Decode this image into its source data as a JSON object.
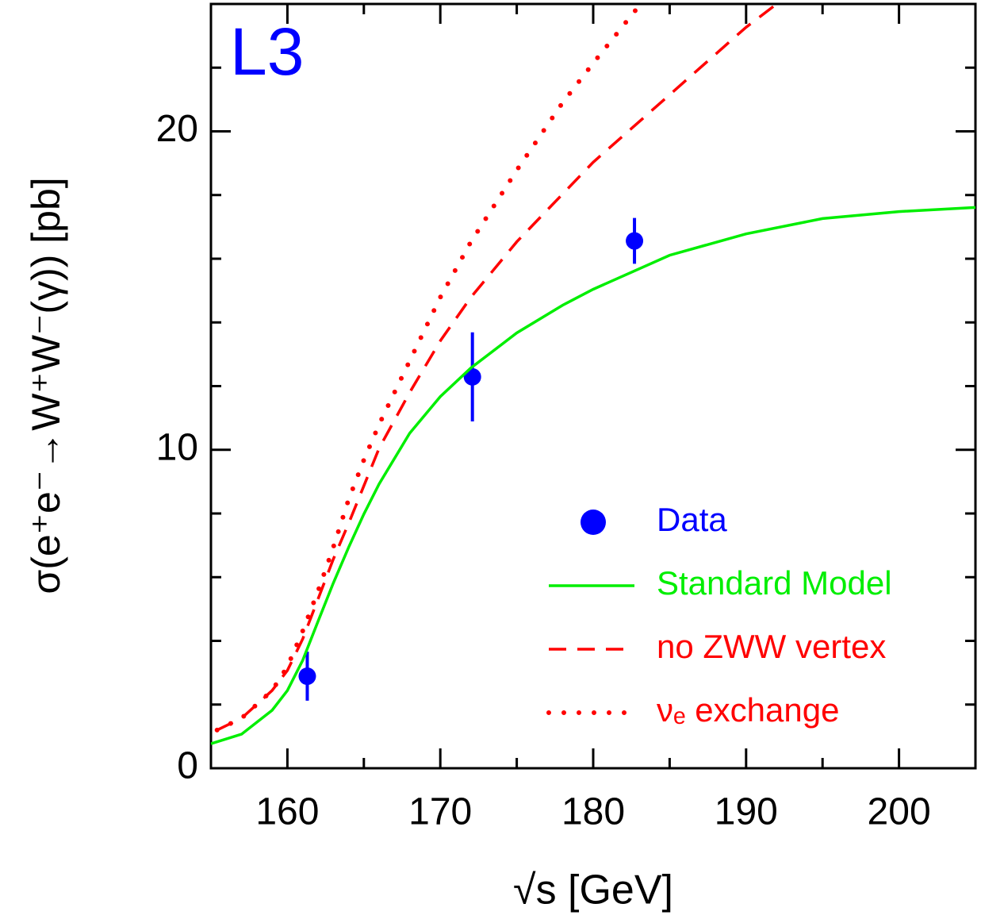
{
  "chart_data": {
    "type": "line",
    "title": "L3",
    "x_label": "√s   [GeV]",
    "y_label": "σ(e⁺e⁻→W⁺W⁻(γ))   [pb]",
    "xlim": [
      155,
      205
    ],
    "ylim": [
      0,
      24
    ],
    "xticks": [
      160,
      170,
      180,
      190,
      200
    ],
    "yticks": [
      0,
      10,
      20
    ],
    "xminorticks": [
      165,
      175,
      185,
      195
    ],
    "yminorticks": [
      2,
      4,
      6,
      8,
      12,
      14,
      16,
      18,
      22
    ],
    "legend": "lower right",
    "series": [
      {
        "name": "Data",
        "color": "#0000ff",
        "style": "points",
        "x": [
          161.3,
          172.1,
          182.7
        ],
        "values": [
          2.89,
          12.29,
          16.56
        ],
        "errors": [
          0.77,
          1.4,
          0.72
        ]
      },
      {
        "name": "Standard Model",
        "color": "#00ee00",
        "style": "solid",
        "x": [
          155,
          157,
          159,
          160,
          161,
          162,
          163,
          164,
          165,
          166,
          168,
          170,
          172,
          175,
          178,
          180,
          185,
          190,
          195,
          200,
          205
        ],
        "values": [
          0.77,
          1.07,
          1.82,
          2.44,
          3.39,
          4.61,
          5.81,
          6.93,
          7.98,
          8.93,
          10.52,
          11.67,
          12.57,
          13.67,
          14.54,
          15.04,
          16.11,
          16.78,
          17.26,
          17.48,
          17.61
        ]
      },
      {
        "name": "no ZWW vertex",
        "color": "#ff0000",
        "style": "dashed",
        "x": [
          155.4,
          157,
          159,
          160,
          161,
          162,
          163,
          164,
          166,
          168,
          170,
          172,
          175,
          178,
          180,
          185,
          190,
          192
        ],
        "values": [
          1.2,
          1.57,
          2.44,
          3.07,
          4.06,
          5.31,
          6.56,
          7.68,
          10.05,
          11.8,
          13.42,
          14.79,
          16.53,
          18.03,
          19.03,
          21.15,
          23.27,
          24.0
        ]
      },
      {
        "name": "νₑ exchange",
        "color": "#ff0000",
        "style": "dotted",
        "x": [
          155.4,
          157,
          159,
          160,
          161,
          162,
          163,
          164,
          165,
          166,
          168,
          170,
          172,
          175,
          178,
          180,
          183
        ],
        "values": [
          1.2,
          1.57,
          2.44,
          3.19,
          4.31,
          5.56,
          6.93,
          8.43,
          9.68,
          10.8,
          12.79,
          14.79,
          16.53,
          18.78,
          20.9,
          22.14,
          23.94
        ]
      }
    ]
  }
}
